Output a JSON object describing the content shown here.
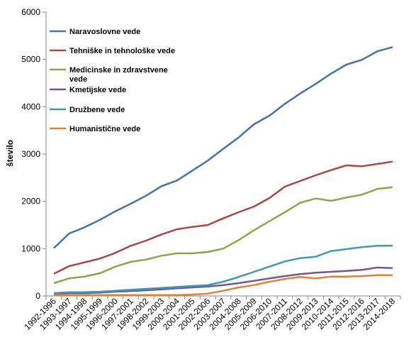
{
  "chart_data": {
    "type": "line",
    "title": "",
    "xlabel": "",
    "ylabel": "število",
    "ylim": [
      0,
      6000
    ],
    "yticks": [
      "0",
      "1000",
      "2000",
      "3000",
      "4000",
      "5000",
      "6000"
    ],
    "grid": false,
    "legend_position": "top-left",
    "categories": [
      "1992-1996",
      "1993-1997",
      "1994-1998",
      "1995-1999",
      "1996-2000",
      "1997-2001",
      "1998-2002",
      "1999-2003",
      "2000-2004",
      "2001-2005",
      "2002-2006",
      "2003-2007",
      "2004-2008",
      "2005-2009",
      "2006-2010",
      "2007-2011",
      "2008-2012",
      "2009-2013",
      "2010-2014",
      "2011-2015",
      "2012-2016",
      "2013-2017",
      "2014-2018"
    ],
    "series": [
      {
        "name": "Naravoslovne vede",
        "color": "#4572A7",
        "values": [
          1010,
          1320,
          1450,
          1610,
          1790,
          1950,
          2120,
          2320,
          2440,
          2650,
          2860,
          3110,
          3350,
          3630,
          3810,
          4060,
          4280,
          4480,
          4700,
          4890,
          4990,
          5170,
          5260
        ]
      },
      {
        "name": "Tehniške in tehnološke vede",
        "color": "#AA4643",
        "values": [
          470,
          630,
          710,
          790,
          910,
          1060,
          1170,
          1300,
          1410,
          1460,
          1500,
          1640,
          1770,
          1890,
          2070,
          2310,
          2430,
          2550,
          2660,
          2760,
          2740,
          2790,
          2840
        ]
      },
      {
        "name": "Medicinske in zdravstvene vede",
        "color": "#89A54E",
        "values": [
          270,
          370,
          410,
          480,
          620,
          720,
          770,
          850,
          900,
          900,
          930,
          1000,
          1180,
          1390,
          1580,
          1770,
          1970,
          2060,
          2010,
          2080,
          2140,
          2260,
          2300
        ]
      },
      {
        "name": "Kmetijske vede",
        "color": "#71588F",
        "values": [
          40,
          60,
          60,
          70,
          90,
          100,
          120,
          140,
          160,
          180,
          200,
          230,
          270,
          320,
          370,
          420,
          460,
          490,
          510,
          530,
          550,
          600,
          590
        ]
      },
      {
        "name": "Družbene vede",
        "color": "#4198AF",
        "values": [
          60,
          80,
          80,
          90,
          110,
          130,
          150,
          170,
          190,
          210,
          230,
          300,
          400,
          510,
          620,
          730,
          800,
          830,
          950,
          990,
          1030,
          1060,
          1060
        ]
      },
      {
        "name": "Humanistične vede",
        "color": "#DB843D",
        "values": [
          20,
          20,
          20,
          20,
          20,
          20,
          20,
          20,
          20,
          30,
          50,
          110,
          180,
          230,
          300,
          360,
          400,
          370,
          410,
          410,
          420,
          440,
          440
        ]
      }
    ]
  }
}
